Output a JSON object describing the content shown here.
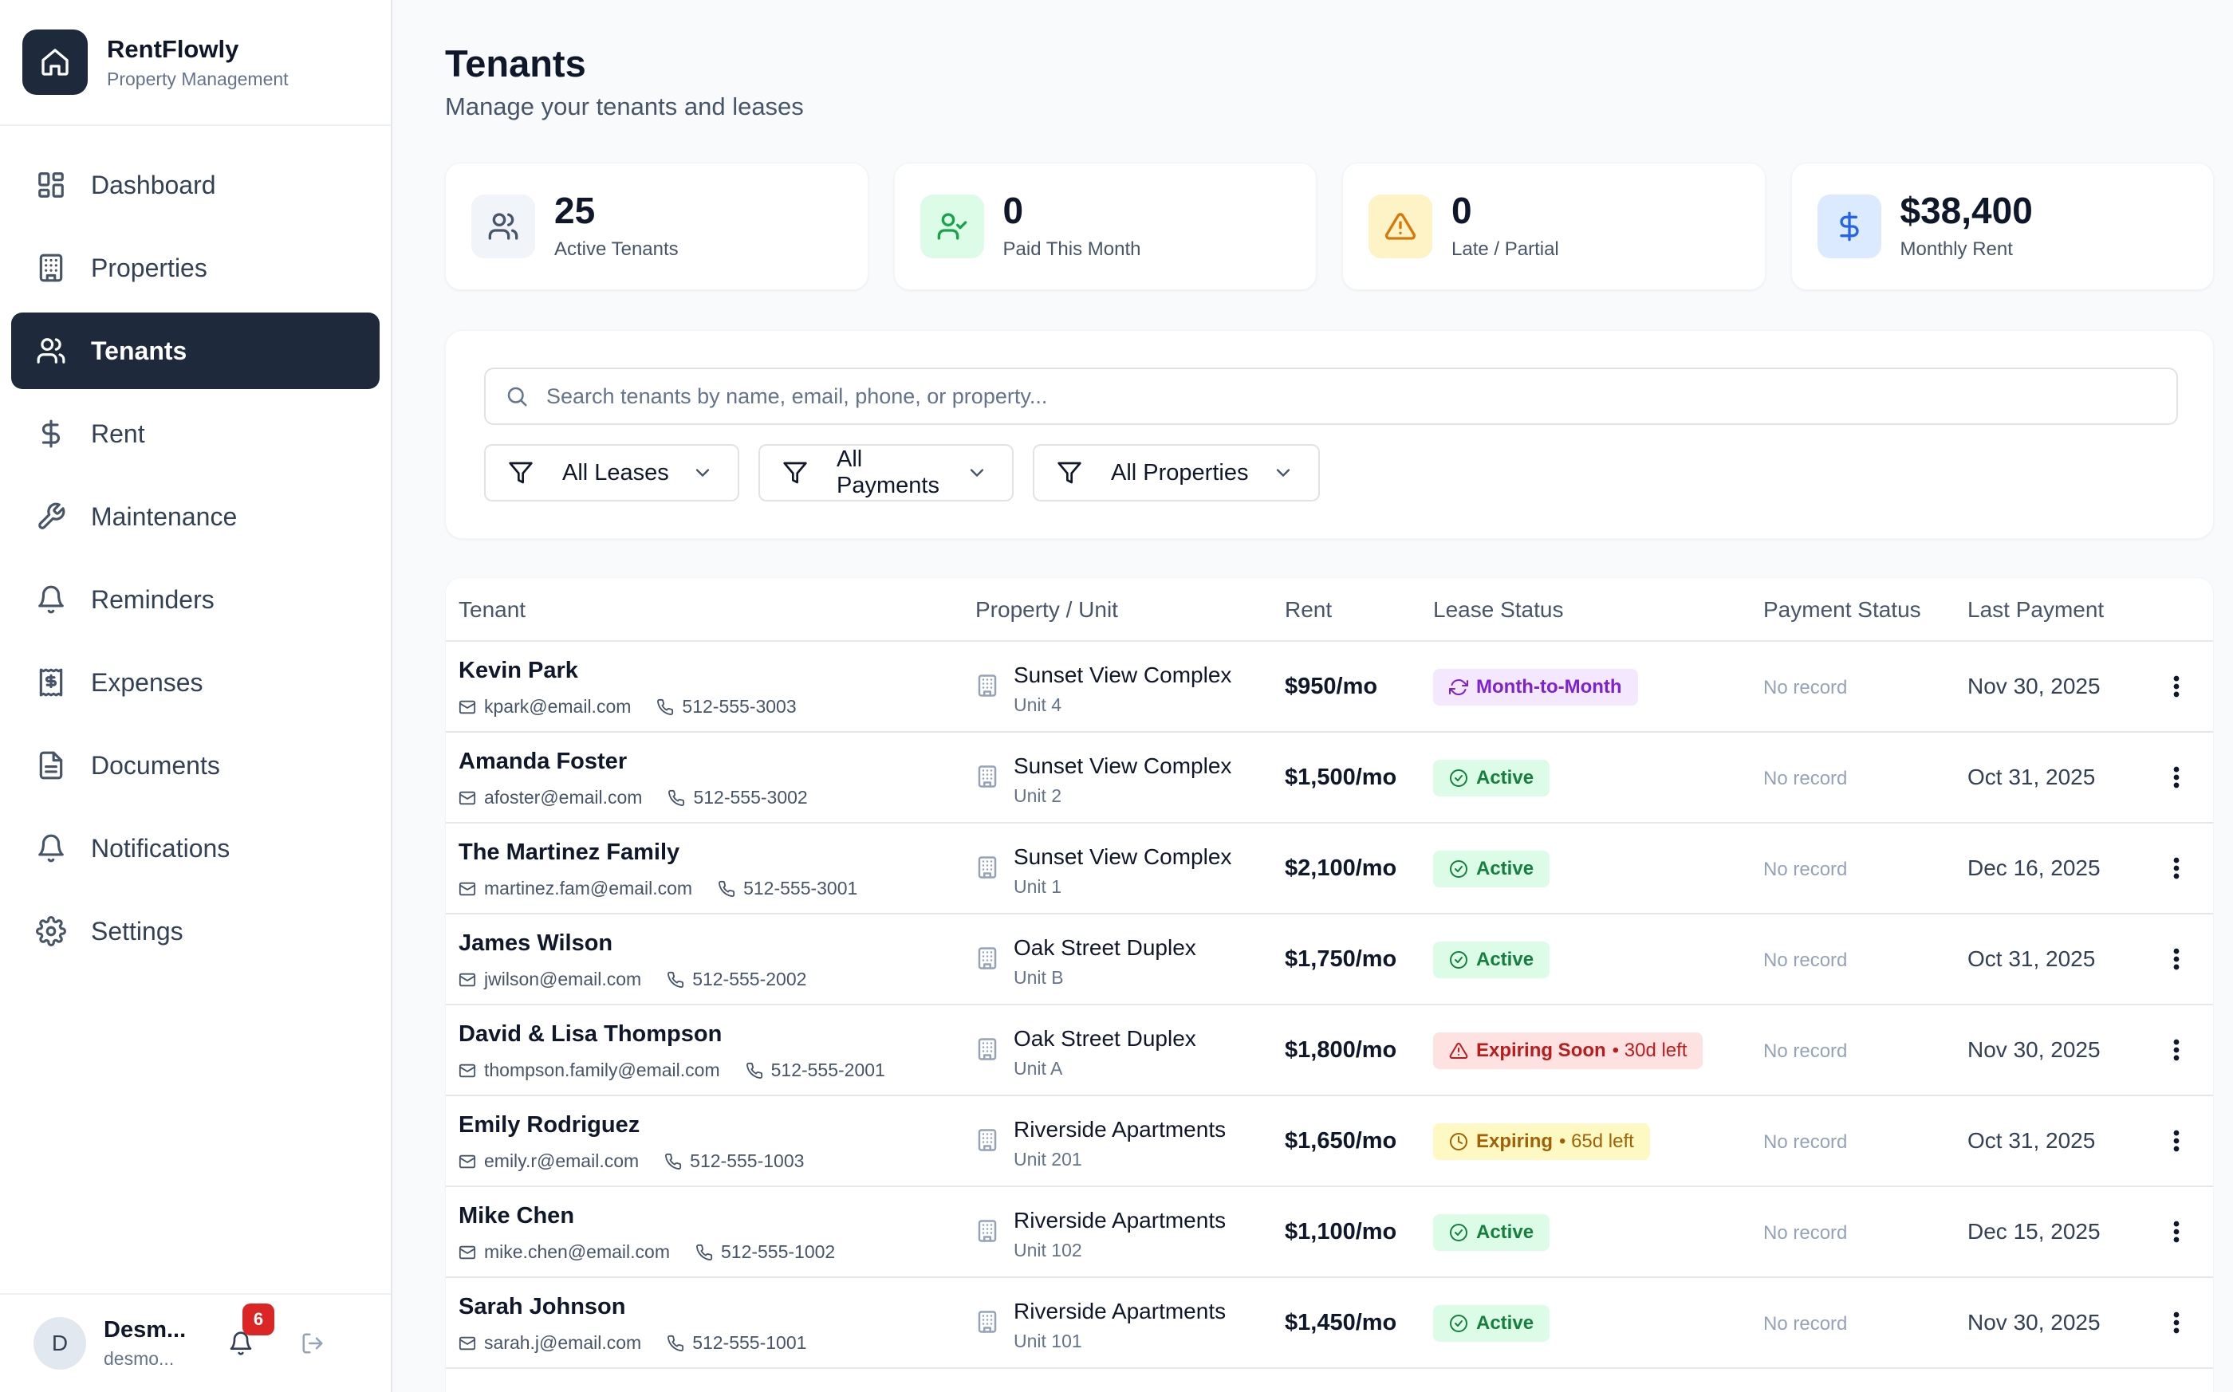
{
  "brand": {
    "name": "RentFlowly",
    "subtitle": "Property Management"
  },
  "nav": [
    {
      "label": "Dashboard",
      "icon": "grid-icon",
      "active": false
    },
    {
      "label": "Properties",
      "icon": "building-icon",
      "active": false
    },
    {
      "label": "Tenants",
      "icon": "users-icon",
      "active": true
    },
    {
      "label": "Rent",
      "icon": "dollar-icon",
      "active": false
    },
    {
      "label": "Maintenance",
      "icon": "wrench-icon",
      "active": false
    },
    {
      "label": "Reminders",
      "icon": "bell-icon",
      "active": false
    },
    {
      "label": "Expenses",
      "icon": "receipt-icon",
      "active": false
    },
    {
      "label": "Documents",
      "icon": "document-icon",
      "active": false
    },
    {
      "label": "Notifications",
      "icon": "bell-icon",
      "active": false
    },
    {
      "label": "Settings",
      "icon": "gear-icon",
      "active": false
    }
  ],
  "user": {
    "initial": "D",
    "name": "Desm...",
    "email": "desmo...",
    "notification_count": "6"
  },
  "page": {
    "title": "Tenants",
    "subtitle": "Manage your tenants and leases"
  },
  "stats": [
    {
      "value": "25",
      "label": "Active Tenants",
      "icon": "users-icon",
      "color": "#475569",
      "bg": "#f1f5f9"
    },
    {
      "value": "0",
      "label": "Paid This Month",
      "icon": "user-check-icon",
      "color": "#16a34a",
      "bg": "#dcfce7"
    },
    {
      "value": "0",
      "label": "Late / Partial",
      "icon": "warning-icon",
      "color": "#d97706",
      "bg": "#fef3c7"
    },
    {
      "value": "$38,400",
      "label": "Monthly Rent",
      "icon": "dollar-icon",
      "color": "#2563eb",
      "bg": "#dbeafe"
    }
  ],
  "search": {
    "placeholder": "Search tenants by name, email, phone, or property..."
  },
  "filters": [
    {
      "label": "All Leases"
    },
    {
      "label": "All Payments"
    },
    {
      "label": "All Properties"
    }
  ],
  "table": {
    "columns": [
      "Tenant",
      "Property / Unit",
      "Rent",
      "Lease Status",
      "Payment Status",
      "Last Payment"
    ],
    "rows": [
      {
        "name": "Kevin Park",
        "email": "kpark@email.com",
        "phone": "512-555-3003",
        "property": "Sunset View Complex",
        "unit": "Unit 4",
        "rent": "$950/mo",
        "lease": "Month-to-Month",
        "lease_extra": "",
        "lease_style": "purple",
        "payment": "No record",
        "last": "Nov 30, 2025"
      },
      {
        "name": "Amanda Foster",
        "email": "afoster@email.com",
        "phone": "512-555-3002",
        "property": "Sunset View Complex",
        "unit": "Unit 2",
        "rent": "$1,500/mo",
        "lease": "Active",
        "lease_extra": "",
        "lease_style": "green",
        "payment": "No record",
        "last": "Oct 31, 2025"
      },
      {
        "name": "The Martinez Family",
        "email": "martinez.fam@email.com",
        "phone": "512-555-3001",
        "property": "Sunset View Complex",
        "unit": "Unit 1",
        "rent": "$2,100/mo",
        "lease": "Active",
        "lease_extra": "",
        "lease_style": "green",
        "payment": "No record",
        "last": "Dec 16, 2025"
      },
      {
        "name": "James Wilson",
        "email": "jwilson@email.com",
        "phone": "512-555-2002",
        "property": "Oak Street Duplex",
        "unit": "Unit B",
        "rent": "$1,750/mo",
        "lease": "Active",
        "lease_extra": "",
        "lease_style": "green",
        "payment": "No record",
        "last": "Oct 31, 2025"
      },
      {
        "name": "David & Lisa Thompson",
        "email": "thompson.family@email.com",
        "phone": "512-555-2001",
        "property": "Oak Street Duplex",
        "unit": "Unit A",
        "rent": "$1,800/mo",
        "lease": "Expiring Soon",
        "lease_extra": "• 30d left",
        "lease_style": "red",
        "payment": "No record",
        "last": "Nov 30, 2025"
      },
      {
        "name": "Emily Rodriguez",
        "email": "emily.r@email.com",
        "phone": "512-555-1003",
        "property": "Riverside Apartments",
        "unit": "Unit 201",
        "rent": "$1,650/mo",
        "lease": "Expiring",
        "lease_extra": "• 65d left",
        "lease_style": "yellow",
        "payment": "No record",
        "last": "Oct 31, 2025"
      },
      {
        "name": "Mike Chen",
        "email": "mike.chen@email.com",
        "phone": "512-555-1002",
        "property": "Riverside Apartments",
        "unit": "Unit 102",
        "rent": "$1,100/mo",
        "lease": "Active",
        "lease_extra": "",
        "lease_style": "green",
        "payment": "No record",
        "last": "Dec 15, 2025"
      },
      {
        "name": "Sarah Johnson",
        "email": "sarah.j@email.com",
        "phone": "512-555-1001",
        "property": "Riverside Apartments",
        "unit": "Unit 101",
        "rent": "$1,450/mo",
        "lease": "Active",
        "lease_extra": "",
        "lease_style": "green",
        "payment": "No record",
        "last": "Nov 30, 2025"
      }
    ]
  }
}
